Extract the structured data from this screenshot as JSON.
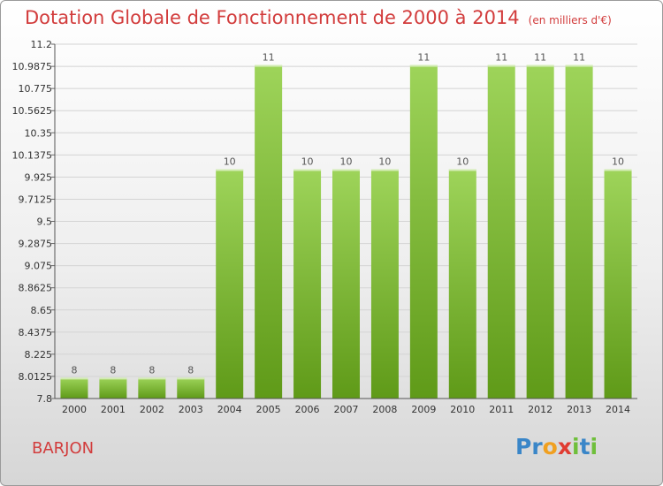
{
  "header": {
    "title": "Dotation Globale de Fonctionnement de 2000 à 2014",
    "unit": "(en milliers d'€)"
  },
  "footer": {
    "commune": "BARJON",
    "brand": [
      "P",
      "r",
      "o",
      "x",
      "i",
      "t",
      "i"
    ]
  },
  "colors": {
    "title": "#d23c3c",
    "bar_top": "#9ed45a",
    "bar_bottom": "#5f9a18",
    "brand": [
      "#3a86c8",
      "#3a86c8",
      "#f0a020",
      "#e03c32",
      "#6fbf3b",
      "#3a86c8",
      "#6fbf3b"
    ]
  },
  "chart_data": {
    "type": "bar",
    "categories": [
      "2000",
      "2001",
      "2002",
      "2003",
      "2004",
      "2005",
      "2006",
      "2007",
      "2008",
      "2009",
      "2010",
      "2011",
      "2012",
      "2013",
      "2014"
    ],
    "values": [
      8,
      8,
      8,
      8,
      10,
      11,
      10,
      10,
      10,
      11,
      10,
      11,
      11,
      11,
      10
    ],
    "data_labels": [
      "8",
      "8",
      "8",
      "8",
      "10",
      "11",
      "10",
      "10",
      "10",
      "11",
      "10",
      "11",
      "11",
      "11",
      "10"
    ],
    "ylim": [
      7.8,
      11.2
    ],
    "yticks": [
      "7.8",
      "8.0125",
      "8.225",
      "8.4375",
      "8.65",
      "8.8625",
      "9.075",
      "9.2875",
      "9.5",
      "9.7125",
      "9.925",
      "10.1375",
      "10.35",
      "10.5625",
      "10.775",
      "10.9875",
      "11.2"
    ],
    "grid": true
  }
}
